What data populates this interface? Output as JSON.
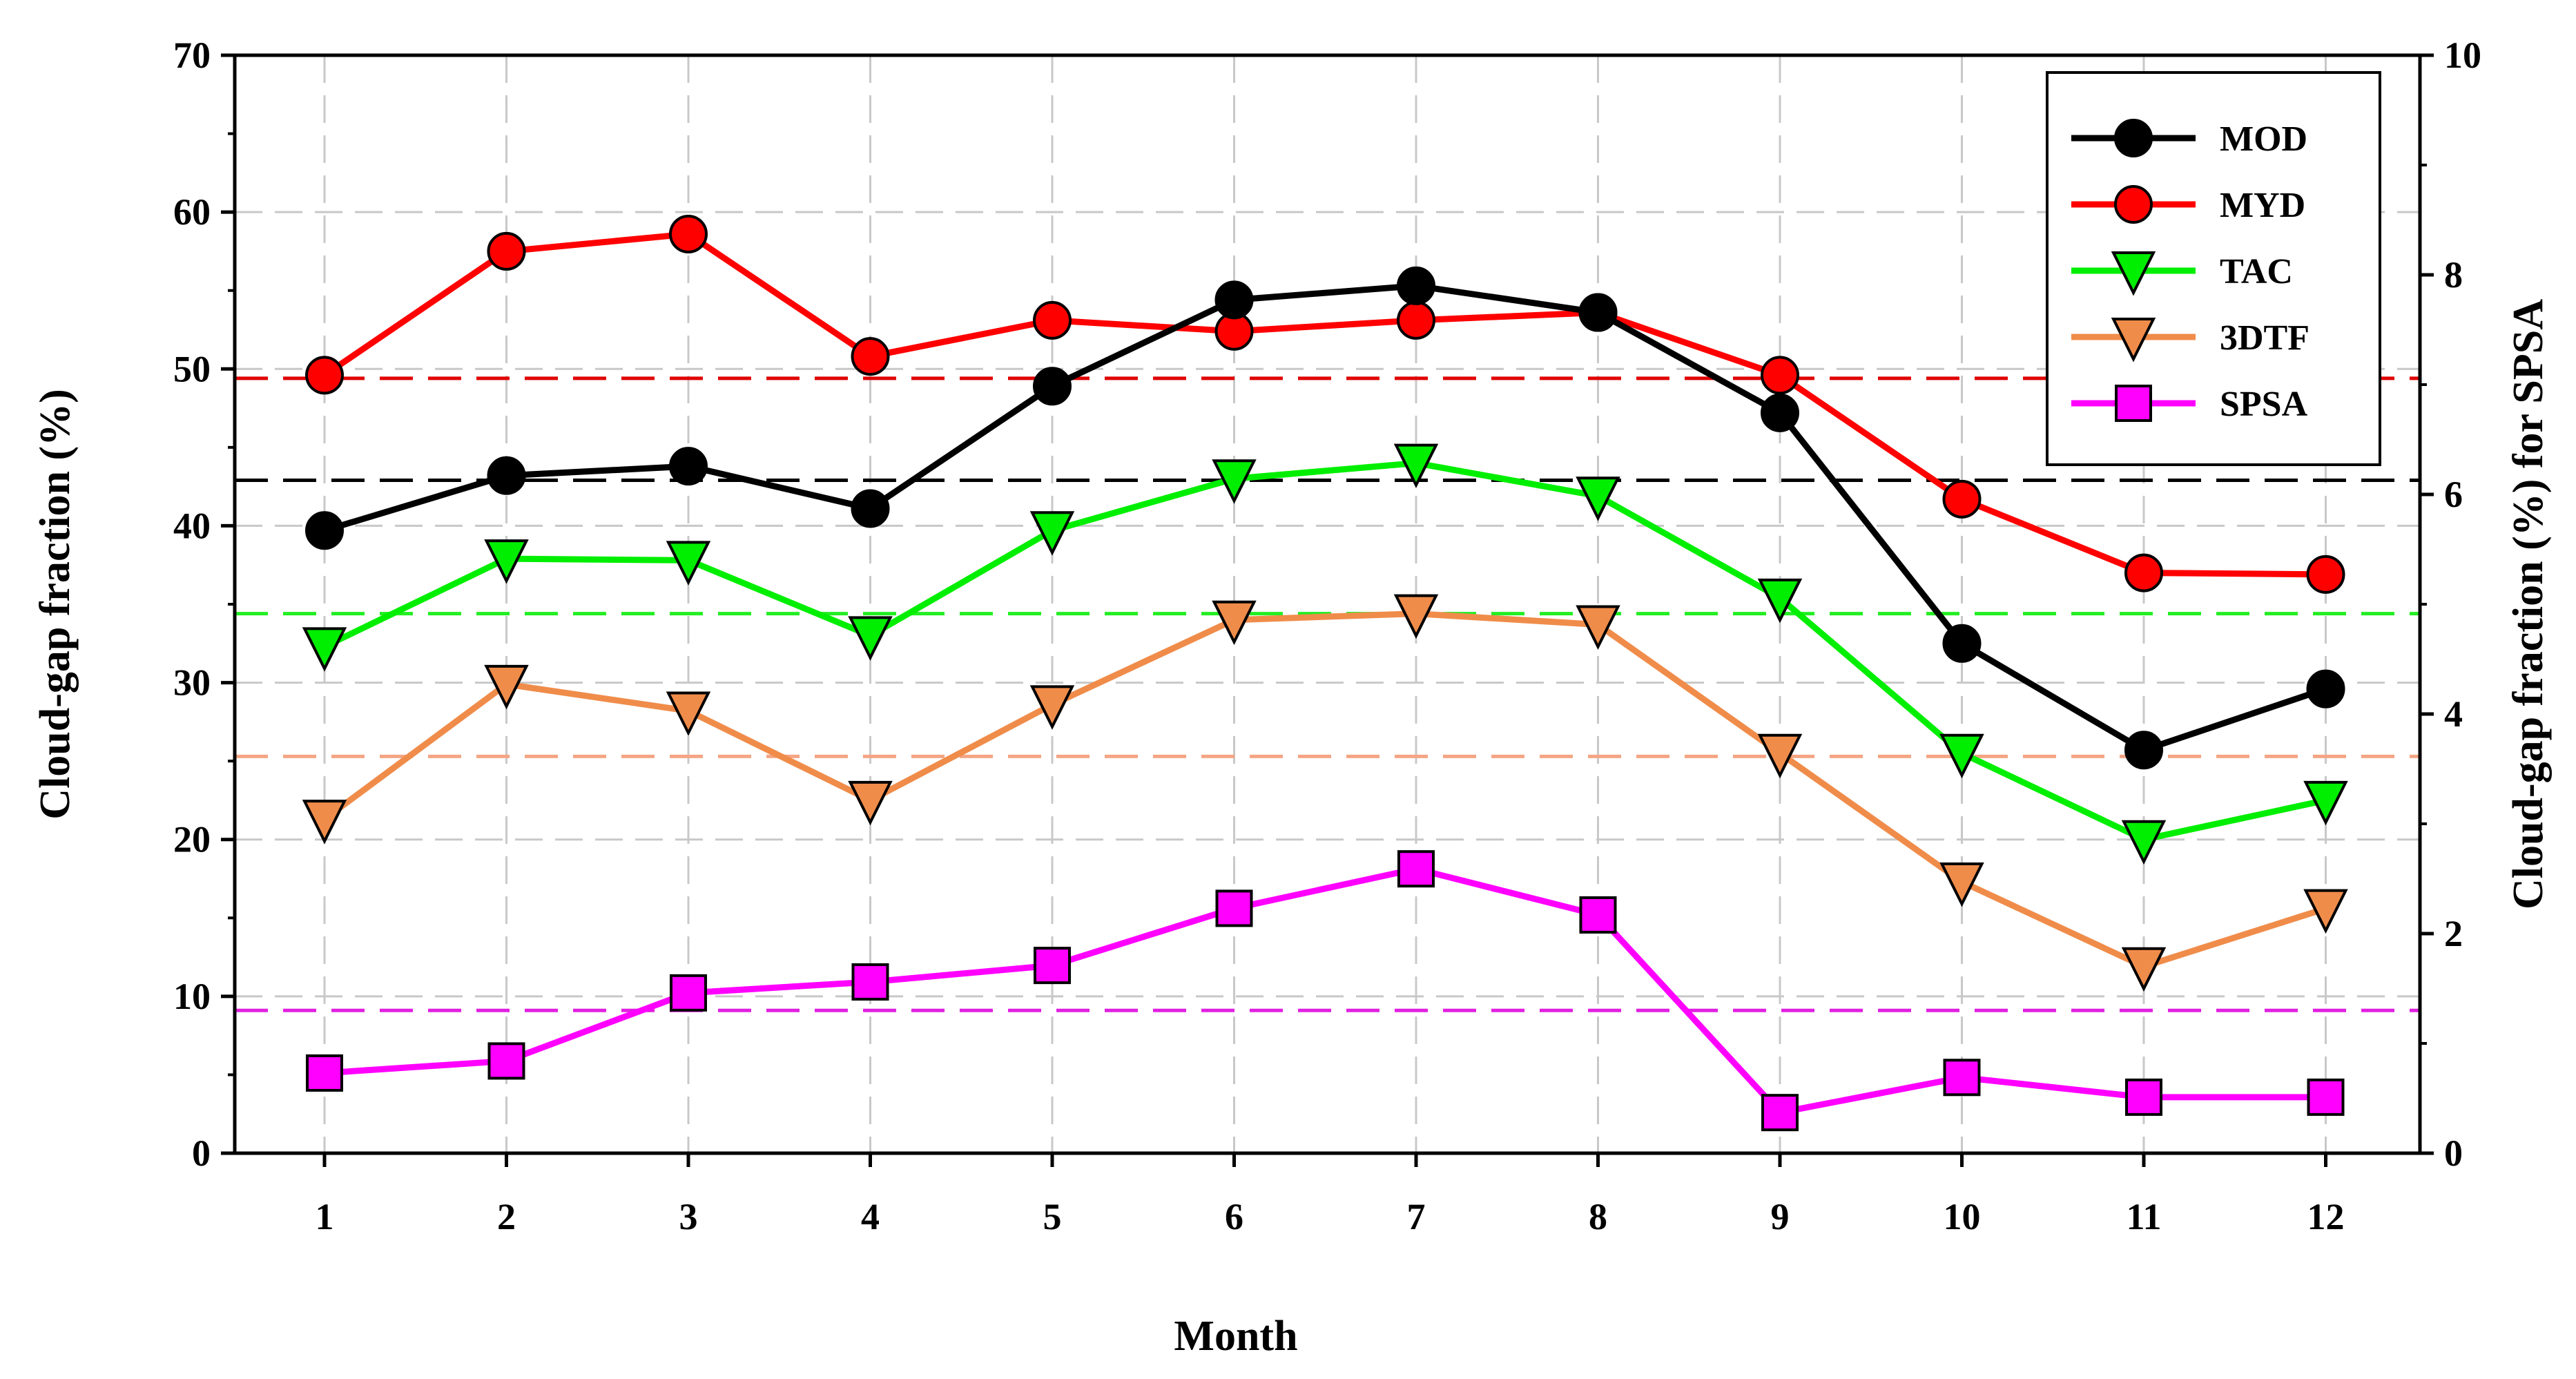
{
  "chart_data": {
    "type": "line",
    "title": "",
    "xlabel": "Month",
    "ylabel": "Cloud-gap fraction (%)",
    "y2label": "Cloud-gap fraction (%) for SPSA",
    "categories": [
      "1",
      "2",
      "3",
      "4",
      "5",
      "6",
      "7",
      "8",
      "9",
      "10",
      "11",
      "12"
    ],
    "ylim": [
      0,
      70
    ],
    "yticks": [
      0,
      10,
      20,
      30,
      40,
      50,
      60,
      70
    ],
    "y2lim": [
      0,
      10
    ],
    "y2ticks": [
      0,
      2,
      4,
      6,
      8,
      10
    ],
    "grid": true,
    "legend_position": "top-right",
    "series": [
      {
        "name": "MOD",
        "axis": "left",
        "color": "#000000",
        "marker": "circle",
        "values": [
          39.7,
          43.2,
          43.8,
          41.1,
          48.9,
          54.4,
          55.3,
          53.6,
          47.2,
          32.5,
          25.7,
          29.6
        ],
        "mean": 42.9
      },
      {
        "name": "MYD",
        "axis": "left",
        "color": "#ff0000",
        "marker": "circle",
        "values": [
          49.6,
          57.5,
          58.6,
          50.8,
          53.1,
          52.4,
          53.1,
          53.6,
          49.6,
          41.7,
          37.0,
          36.9
        ],
        "mean": 49.4
      },
      {
        "name": "TAC",
        "axis": "left",
        "color": "#00ee00",
        "marker": "triangle-down",
        "values": [
          32.3,
          37.9,
          37.8,
          33.0,
          39.7,
          43.0,
          44.0,
          41.9,
          35.4,
          25.5,
          20.0,
          22.5
        ],
        "mean": 34.4
      },
      {
        "name": "3DTF",
        "axis": "left",
        "color": "#f08c4a",
        "marker": "triangle-down",
        "values": [
          21.3,
          29.9,
          28.2,
          22.5,
          28.6,
          34.0,
          34.4,
          33.7,
          25.5,
          17.3,
          11.9,
          15.6
        ],
        "mean": 25.3
      },
      {
        "name": "SPSA",
        "axis": "right",
        "color": "#ff00ff",
        "marker": "square",
        "values": [
          0.73,
          0.84,
          1.46,
          1.56,
          1.71,
          2.23,
          2.59,
          2.17,
          0.37,
          0.69,
          0.51,
          0.51
        ],
        "mean": 1.3
      }
    ]
  }
}
